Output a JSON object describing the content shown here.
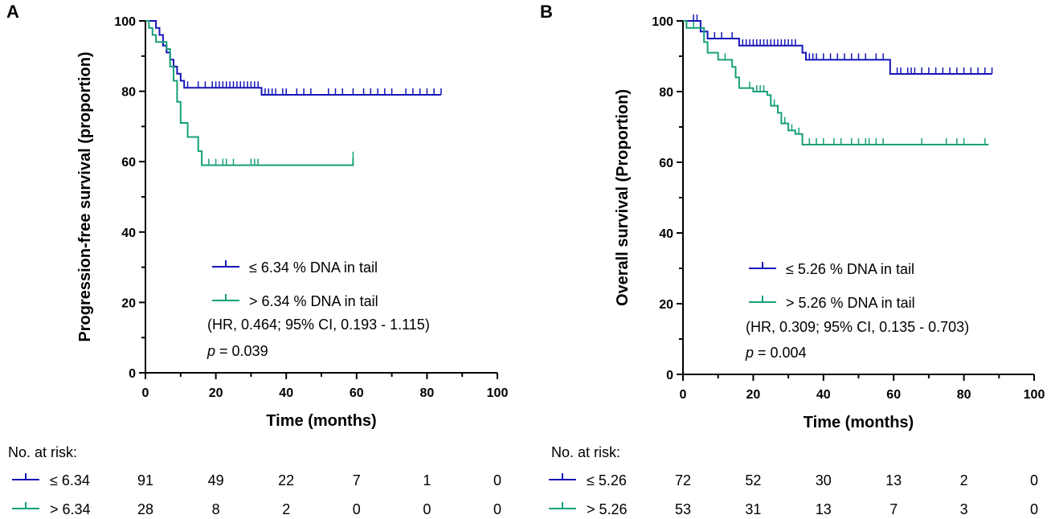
{
  "chart_data": [
    {
      "panel": "A",
      "type": "line",
      "subtype": "kaplan-meier",
      "xlabel": "Time (months)",
      "ylabel": "Progression-free survival (proportion)",
      "xlim": [
        0,
        100
      ],
      "ylim": [
        0,
        100
      ],
      "xticks": [
        0,
        20,
        40,
        60,
        80,
        100
      ],
      "yticks": [
        0,
        20,
        40,
        60,
        80,
        100
      ],
      "series": [
        {
          "name": "≤ 6.34 % DNA in tail",
          "color": "#1515b8",
          "steps": [
            [
              0,
              100
            ],
            [
              2,
              100
            ],
            [
              3,
              98
            ],
            [
              4,
              96
            ],
            [
              5,
              93
            ],
            [
              6,
              91
            ],
            [
              7,
              89
            ],
            [
              8,
              87
            ],
            [
              9,
              85
            ],
            [
              10,
              83
            ],
            [
              11,
              81
            ],
            [
              33,
              81
            ],
            [
              33,
              79
            ],
            [
              84,
              79
            ]
          ],
          "censor": [
            3,
            4,
            10,
            12,
            15,
            17,
            19,
            20,
            21,
            22,
            23,
            24,
            25,
            26,
            27,
            28,
            29,
            30,
            31,
            32,
            34,
            35,
            36,
            37,
            39,
            40,
            43,
            45,
            47,
            52,
            54,
            56,
            59,
            62,
            64,
            66,
            68,
            70,
            74,
            76,
            78,
            80,
            82,
            84
          ]
        },
        {
          "name": "> 6.34 % DNA in tail",
          "color": "#18a07a",
          "steps": [
            [
              0,
              100
            ],
            [
              1,
              98
            ],
            [
              2,
              96
            ],
            [
              3,
              94
            ],
            [
              6,
              92
            ],
            [
              7,
              87
            ],
            [
              8,
              83
            ],
            [
              9,
              77
            ],
            [
              10,
              71
            ],
            [
              12,
              67
            ],
            [
              15,
              63
            ],
            [
              16,
              59
            ],
            [
              59,
              59
            ],
            [
              59,
              61
            ]
          ],
          "censor": [
            2,
            16,
            18,
            20,
            22,
            23,
            25,
            30,
            31,
            32,
            59
          ]
        }
      ],
      "legend": [
        "≤ 6.34 % DNA in tail",
        "> 6.34 % DNA in tail"
      ],
      "annotation": "(HR, 0.464; 95% CI, 0.193 - 1.115)",
      "p_label": "p",
      "p_value": "= 0.039",
      "risk_table": {
        "header": "No. at risk:",
        "rows": [
          {
            "label": "≤ 6.34",
            "values": [
              "91",
              "49",
              "22",
              "7",
              "1",
              "0"
            ]
          },
          {
            "label": "> 6.34",
            "values": [
              "28",
              "8",
              "2",
              "0",
              "0",
              "0"
            ]
          }
        ]
      }
    },
    {
      "panel": "B",
      "type": "line",
      "subtype": "kaplan-meier",
      "xlabel": "Time (months)",
      "ylabel": "Overall survival  (Proportion)",
      "xlim": [
        0,
        100
      ],
      "ylim": [
        0,
        100
      ],
      "xticks": [
        0,
        20,
        40,
        60,
        80,
        100
      ],
      "yticks": [
        0,
        20,
        40,
        60,
        80,
        100
      ],
      "series": [
        {
          "name": "≤ 5.26 % DNA in tail",
          "color": "#1515b8",
          "steps": [
            [
              0,
              100
            ],
            [
              4,
              100
            ],
            [
              5,
              97
            ],
            [
              7,
              95
            ],
            [
              16,
              95
            ],
            [
              16,
              93
            ],
            [
              33,
              93
            ],
            [
              34,
              91
            ],
            [
              35,
              89
            ],
            [
              59,
              89
            ],
            [
              59,
              85
            ],
            [
              88,
              85
            ]
          ],
          "censor": [
            3,
            4,
            9,
            11,
            14,
            17,
            18,
            19,
            20,
            21,
            22,
            23,
            24,
            25,
            26,
            27,
            28,
            29,
            30,
            31,
            32,
            34,
            36,
            37,
            38,
            40,
            42,
            44,
            46,
            48,
            50,
            52,
            55,
            57,
            61,
            62,
            64,
            65,
            66,
            68,
            70,
            72,
            74,
            76,
            78,
            80,
            82,
            84,
            86,
            88
          ]
        },
        {
          "name": "> 5.26 % DNA in tail",
          "color": "#18a07a",
          "steps": [
            [
              0,
              100
            ],
            [
              1,
              98
            ],
            [
              5,
              98
            ],
            [
              6,
              94
            ],
            [
              7,
              91
            ],
            [
              10,
              89
            ],
            [
              14,
              87
            ],
            [
              15,
              84
            ],
            [
              16,
              81
            ],
            [
              20,
              80
            ],
            [
              24,
              79
            ],
            [
              25,
              76
            ],
            [
              27,
              74
            ],
            [
              28,
              71
            ],
            [
              30,
              69
            ],
            [
              32,
              68
            ],
            [
              34,
              65
            ],
            [
              87,
              65
            ]
          ],
          "censor": [
            3,
            12,
            19,
            21,
            22,
            23,
            25,
            26,
            29,
            31,
            33,
            36,
            38,
            40,
            43,
            45,
            48,
            50,
            52,
            53,
            55,
            57,
            68,
            75,
            78,
            80,
            86
          ]
        }
      ],
      "legend": [
        "≤ 5.26 % DNA in tail",
        "> 5.26 % DNA in tail"
      ],
      "annotation": "(HR, 0.309; 95% CI, 0.135 - 0.703)",
      "p_label": "p",
      "p_value": "= 0.004",
      "risk_table": {
        "header": "No. at risk:",
        "rows": [
          {
            "label": "≤ 5.26",
            "values": [
              "72",
              "52",
              "30",
              "13",
              "2",
              "0"
            ]
          },
          {
            "label": "> 5.26",
            "values": [
              "53",
              "31",
              "13",
              "7",
              "3",
              "0"
            ]
          }
        ]
      }
    }
  ]
}
